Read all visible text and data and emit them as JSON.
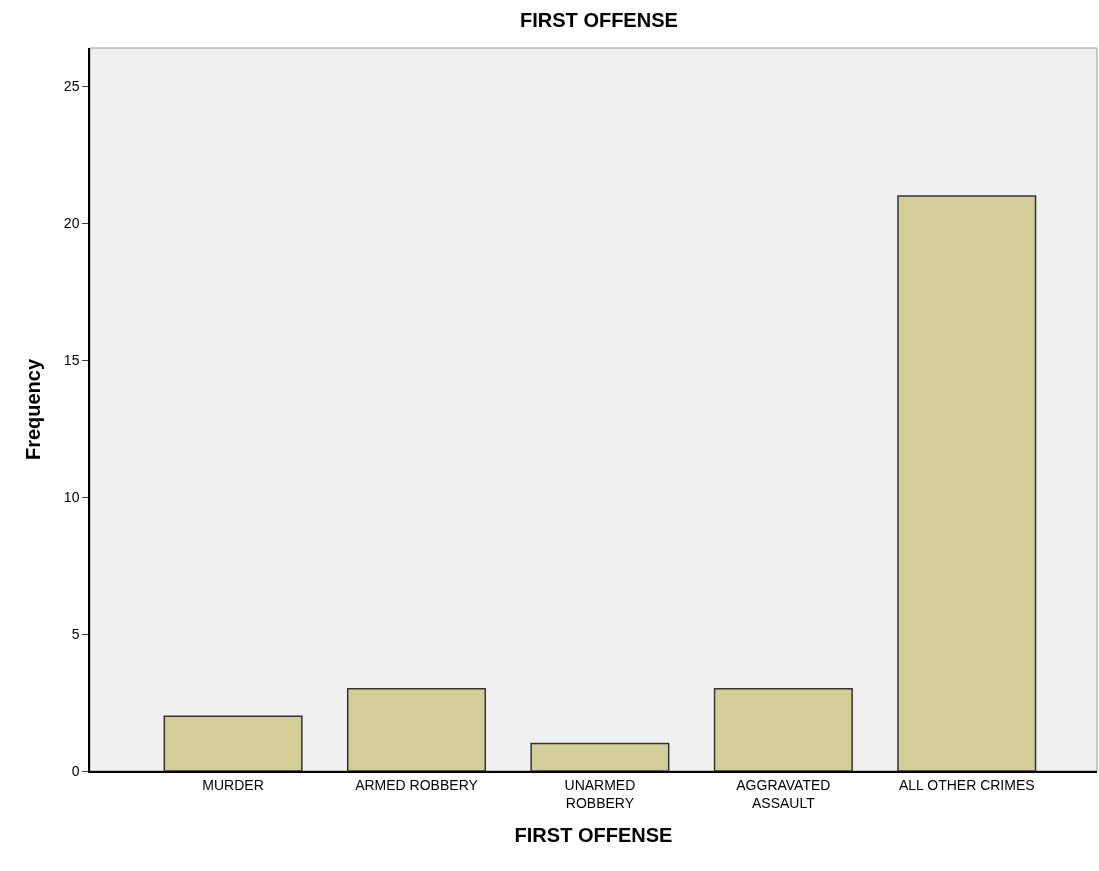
{
  "chart_data": {
    "type": "bar",
    "title": "FIRST OFFENSE",
    "xlabel": "FIRST OFFENSE",
    "ylabel": "Frequency",
    "categories": [
      "MURDER",
      "ARMED ROBBERY",
      "UNARMED\nROBBERY",
      "AGGRAVATED\nASSAULT",
      "ALL OTHER CRIMES"
    ],
    "values": [
      2,
      3,
      1,
      3,
      21
    ],
    "color": "#d3ce97",
    "ylim": [
      0,
      26.4
    ],
    "yticks": [
      0,
      5,
      10,
      15,
      20,
      25
    ],
    "grid": false,
    "legend": false
  }
}
